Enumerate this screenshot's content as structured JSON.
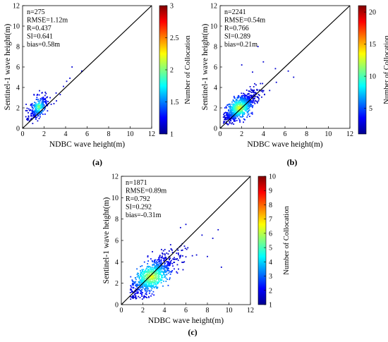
{
  "chart_data": [
    {
      "type": "scatter",
      "panel_label": "(a)",
      "xlabel": "NDBC wave height(m)",
      "ylabel": "Sentinel-1 wave height(m)",
      "xlim": [
        0,
        12
      ],
      "ylim": [
        0,
        12
      ],
      "xticks": [
        0,
        2,
        4,
        6,
        8,
        10,
        12
      ],
      "yticks": [
        0,
        2,
        4,
        6,
        8,
        10,
        12
      ],
      "reference_line": "1:1",
      "stats": [
        "n=275",
        "RMSE=1.12m",
        "R=0.437",
        "SI=0.641",
        "bias=0.58m"
      ],
      "colorbar": {
        "label": "Number of Collocation",
        "range": [
          1,
          3
        ],
        "ticks": [
          "1",
          "1.5",
          "2",
          "2.5",
          "3"
        ],
        "colormap": "jet"
      },
      "cluster": {
        "n_points": 275,
        "x_center": 1.5,
        "y_center": 2.1,
        "x_spread": 0.55,
        "y_spread": 0.75,
        "x_range": [
          0.3,
          3.2
        ],
        "y_range": [
          0.4,
          4.6
        ]
      },
      "outliers": [
        [
          4.6,
          6.0
        ],
        [
          4.4,
          4.9
        ],
        [
          4.1,
          4.6
        ],
        [
          3.8,
          4.1
        ],
        [
          3.5,
          3.3
        ],
        [
          5.5,
          5.6
        ]
      ]
    },
    {
      "type": "scatter",
      "panel_label": "(b)",
      "xlabel": "NDBC wave height(m)",
      "ylabel": "Sentinel-1 wave height(m)",
      "xlim": [
        0,
        12
      ],
      "ylim": [
        0,
        12
      ],
      "xticks": [
        0,
        2,
        4,
        6,
        8,
        10,
        12
      ],
      "yticks": [
        0,
        2,
        4,
        6,
        8,
        10,
        12
      ],
      "reference_line": "1:1",
      "stats": [
        "n=2241",
        "RMSE=0.54m",
        "R=0.766",
        "SI=0.289",
        "bias=0.21m"
      ],
      "colorbar": {
        "label": "Number of Collocation",
        "range": [
          1,
          21
        ],
        "ticks": [
          "5",
          "10",
          "15",
          "20"
        ],
        "colormap": "jet"
      },
      "cluster": {
        "n_points": 2241,
        "x_center": 1.8,
        "y_center": 2.0,
        "x_spread": 0.8,
        "y_spread": 0.75,
        "x_range": [
          0.3,
          6.5
        ],
        "y_range": [
          0.3,
          7.0
        ]
      },
      "outliers": [
        [
          3.5,
          8.0
        ],
        [
          2.0,
          6.2
        ],
        [
          6.8,
          5.0
        ],
        [
          6.3,
          5.6
        ],
        [
          4.0,
          6.5
        ],
        [
          3.0,
          5.5
        ],
        [
          5.2,
          4.5
        ]
      ]
    },
    {
      "type": "scatter",
      "panel_label": "(c)",
      "xlabel": "NDBC wave height(m)",
      "ylabel": "Sentinel-1 wave height(m)",
      "xlim": [
        0,
        12
      ],
      "ylim": [
        0,
        12
      ],
      "xticks": [
        0,
        2,
        4,
        6,
        8,
        10,
        12
      ],
      "yticks": [
        0,
        2,
        4,
        6,
        8,
        10,
        12
      ],
      "reference_line": "1:1",
      "stats": [
        "n=1871",
        "RMSE=0.89m",
        "R=0.792",
        "SI=0.292",
        "bias=-0.31m"
      ],
      "colorbar": {
        "label": "Number of Collocation",
        "range": [
          1,
          10
        ],
        "ticks": [
          "1",
          "2",
          "3",
          "4",
          "5",
          "6",
          "7",
          "8",
          "9",
          "10"
        ],
        "colormap": "jet"
      },
      "cluster": {
        "n_points": 1871,
        "x_center": 2.8,
        "y_center": 2.6,
        "x_spread": 1.3,
        "y_spread": 1.0,
        "x_range": [
          0.8,
          9.5
        ],
        "y_range": [
          0.5,
          8.0
        ]
      },
      "outliers": [
        [
          9.0,
          7.0
        ],
        [
          8.5,
          6.2
        ],
        [
          6.0,
          7.5
        ],
        [
          5.5,
          7.2
        ],
        [
          8.0,
          4.5
        ],
        [
          9.3,
          3.5
        ],
        [
          7.5,
          6.5
        ]
      ]
    }
  ]
}
